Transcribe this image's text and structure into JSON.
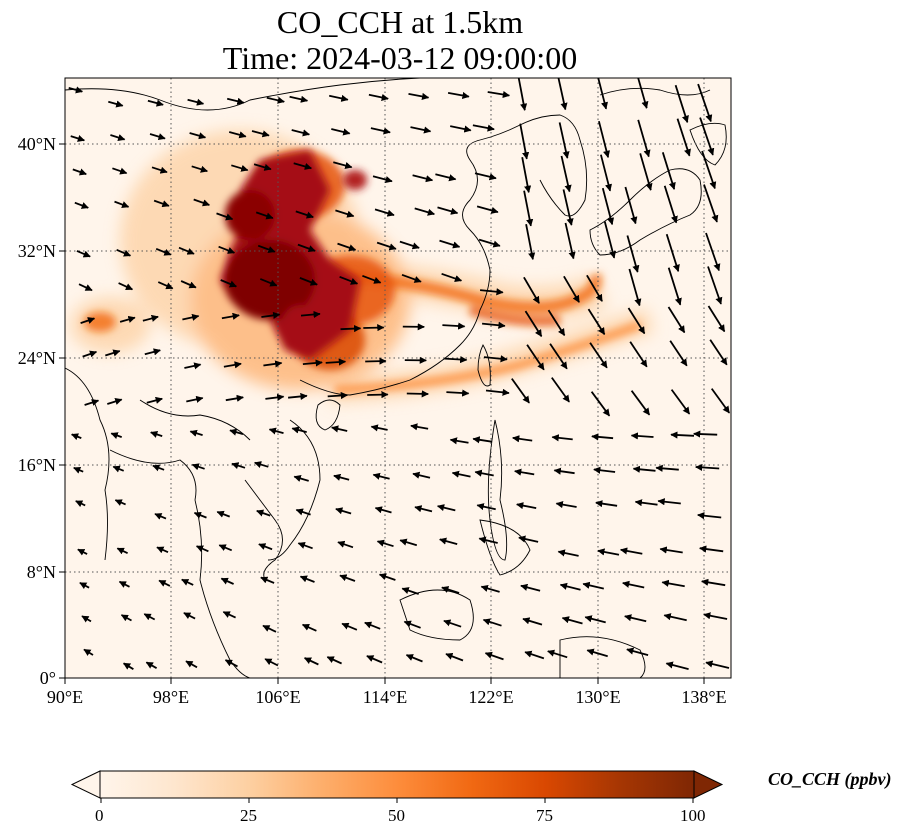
{
  "title_line1": "CO_CCH at 1.5km",
  "title_line2": "Time: 2024-03-12 09:00:00",
  "lon_ticks": [
    "90°E",
    "98°E",
    "106°E",
    "114°E",
    "122°E",
    "130°E",
    "138°E"
  ],
  "lat_ticks": [
    "0°",
    "8°N",
    "16°N",
    "24°N",
    "32°N",
    "40°N"
  ],
  "colorbar": {
    "label": "CO_CCH (ppbv)",
    "ticks": [
      "0",
      "25",
      "50",
      "75",
      "100"
    ],
    "min": 0,
    "max": 100,
    "colormap": [
      "#fff5eb",
      "#fee6ce",
      "#fdd0a2",
      "#fdae6b",
      "#fd8d3c",
      "#f16913",
      "#d94801",
      "#a63603",
      "#7f2704"
    ],
    "extend": "both"
  },
  "map": {
    "lon_range": [
      90,
      140
    ],
    "lat_range": [
      0,
      44
    ],
    "gridlines": true,
    "coastlines": true,
    "wind_vectors": true
  }
}
